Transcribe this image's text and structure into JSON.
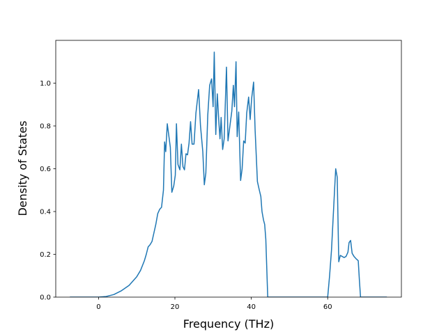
{
  "chart_data": {
    "type": "line",
    "xlabel": "Frequency (THz)",
    "ylabel": "Density of States",
    "color": "#1f77b4",
    "x": [
      -7.5,
      -4,
      0,
      2,
      4,
      6,
      8,
      10,
      11,
      12,
      12.5,
      13,
      13.5,
      14,
      14.5,
      15,
      15.5,
      16,
      16.5,
      17,
      17.3,
      17.6,
      18,
      18.8,
      19.2,
      19.7,
      20.1,
      20.4,
      20.8,
      21.3,
      21.7,
      22.1,
      22.5,
      22.9,
      23.3,
      23.7,
      24.1,
      24.5,
      25,
      25.5,
      26.2,
      26.7,
      27.3,
      27.7,
      28.1,
      28.6,
      29.1,
      29.6,
      30.0,
      30.3,
      30.7,
      31.1,
      31.5,
      31.8,
      32.1,
      32.5,
      32.9,
      33.5,
      33.9,
      34.4,
      34.9,
      35.3,
      35.6,
      36.0,
      36.3,
      36.7,
      37.2,
      37.6,
      38.0,
      38.4,
      38.8,
      39.3,
      39.7,
      40.1,
      40.6,
      41.0,
      41.6,
      42.1,
      42.5,
      42.8,
      43.2,
      43.5,
      43.8,
      44.3,
      50,
      60,
      60.5,
      61,
      61.4,
      61.8,
      62.1,
      62.5,
      62.9,
      63.3,
      63.8,
      64.3,
      64.8,
      65.3,
      65.6,
      66,
      66.4,
      66.9,
      67.4,
      68,
      68.3,
      68.6,
      75.5
    ],
    "values": [
      0,
      0,
      0,
      0.003,
      0.012,
      0.03,
      0.055,
      0.095,
      0.125,
      0.17,
      0.2,
      0.235,
      0.245,
      0.26,
      0.3,
      0.34,
      0.39,
      0.41,
      0.42,
      0.5,
      0.725,
      0.68,
      0.81,
      0.7,
      0.49,
      0.52,
      0.57,
      0.81,
      0.62,
      0.595,
      0.715,
      0.61,
      0.595,
      0.67,
      0.665,
      0.72,
      0.82,
      0.715,
      0.715,
      0.86,
      0.97,
      0.8,
      0.68,
      0.525,
      0.58,
      0.85,
      0.99,
      1.02,
      0.89,
      1.145,
      0.76,
      0.95,
      0.82,
      0.74,
      0.84,
      0.69,
      0.74,
      1.075,
      0.73,
      0.8,
      0.87,
      0.99,
      0.89,
      1.1,
      0.75,
      0.865,
      0.545,
      0.6,
      0.73,
      0.72,
      0.86,
      0.935,
      0.83,
      0.93,
      1.005,
      0.78,
      0.54,
      0.5,
      0.47,
      0.4,
      0.36,
      0.34,
      0.27,
      0,
      0,
      0,
      0.1,
      0.22,
      0.36,
      0.5,
      0.6,
      0.56,
      0.165,
      0.195,
      0.19,
      0.185,
      0.19,
      0.21,
      0.255,
      0.265,
      0.205,
      0.19,
      0.18,
      0.17,
      0.08,
      0,
      0
    ],
    "xlim": [
      -11.2,
      79.3
    ],
    "xticks": [
      0,
      20,
      40,
      60
    ],
    "ylim": [
      0,
      1.2
    ],
    "yticks": [
      {
        "value": 0,
        "label": "0.0"
      },
      {
        "value": 0.2,
        "label": "0.2"
      },
      {
        "value": 0.4,
        "label": "0.4"
      },
      {
        "value": 0.6,
        "label": "0.6"
      },
      {
        "value": 0.8,
        "label": "0.8"
      },
      {
        "value": 1.0,
        "label": "1.0"
      }
    ],
    "grid": false
  }
}
